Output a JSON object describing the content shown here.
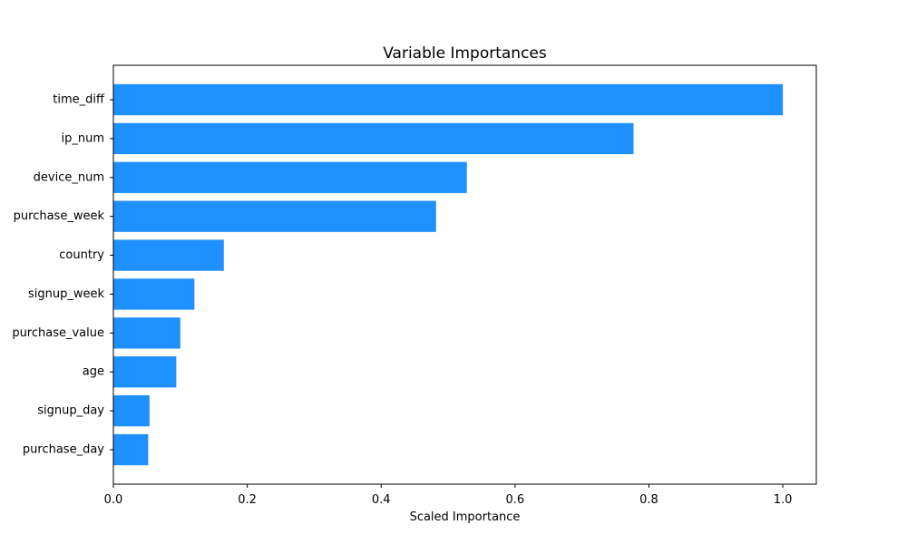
{
  "chart_data": {
    "type": "bar",
    "orientation": "horizontal",
    "title": "Variable Importances",
    "xlabel": "Scaled Importance",
    "ylabel": "",
    "categories": [
      "time_diff",
      "ip_num",
      "device_num",
      "purchase_week",
      "country",
      "signup_week",
      "purchase_value",
      "age",
      "signup_day",
      "purchase_day"
    ],
    "values": [
      1.0,
      0.777,
      0.528,
      0.482,
      0.165,
      0.121,
      0.1,
      0.094,
      0.054,
      0.052
    ],
    "xlim": [
      0.0,
      1.05
    ],
    "xticks": [
      0.0,
      0.2,
      0.4,
      0.6,
      0.8,
      1.0
    ],
    "xtick_labels": [
      "0.0",
      "0.2",
      "0.4",
      "0.6",
      "0.8",
      "1.0"
    ],
    "bar_color": "#1e90ff",
    "grid": false,
    "legend": false
  }
}
